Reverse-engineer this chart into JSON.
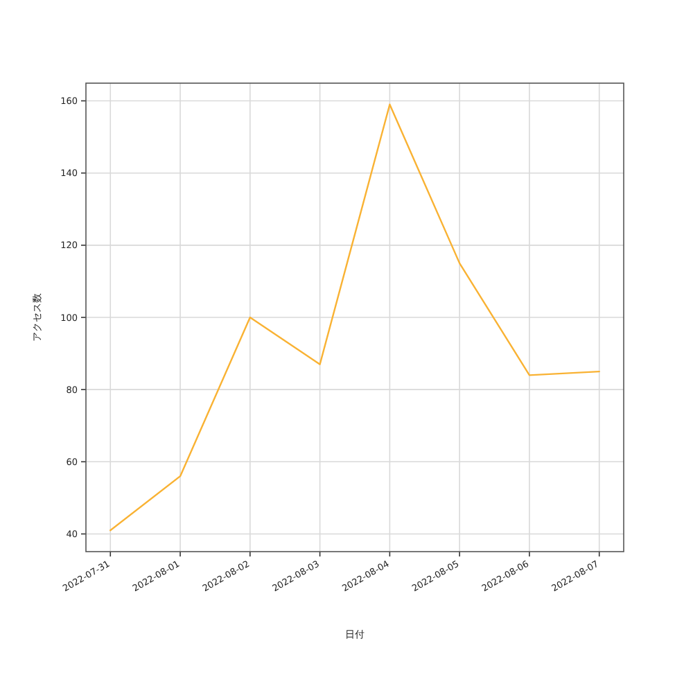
{
  "chart_data": {
    "type": "line",
    "xlabel": "日付",
    "ylabel": "アクセス数",
    "x": [
      "2022-07-31",
      "2022-08-01",
      "2022-08-02",
      "2022-08-03",
      "2022-08-04",
      "2022-08-05",
      "2022-08-06",
      "2022-08-07"
    ],
    "series": [
      {
        "color": "#f9b233",
        "values": [
          41,
          56,
          100,
          87,
          159,
          115,
          84,
          85
        ]
      }
    ],
    "xlim": [
      "2022-07-30T15:36",
      "2022-08-07T08:24"
    ],
    "xticks": [
      "2022-07-31",
      "2022-08-01",
      "2022-08-02",
      "2022-08-03",
      "2022-08-04",
      "2022-08-05",
      "2022-08-06",
      "2022-08-07"
    ],
    "ylim": [
      35.1,
      164.9
    ],
    "yticks": [
      40,
      60,
      80,
      100,
      120,
      140,
      160
    ],
    "grid": true,
    "marker": "none",
    "line_style": "solid"
  }
}
